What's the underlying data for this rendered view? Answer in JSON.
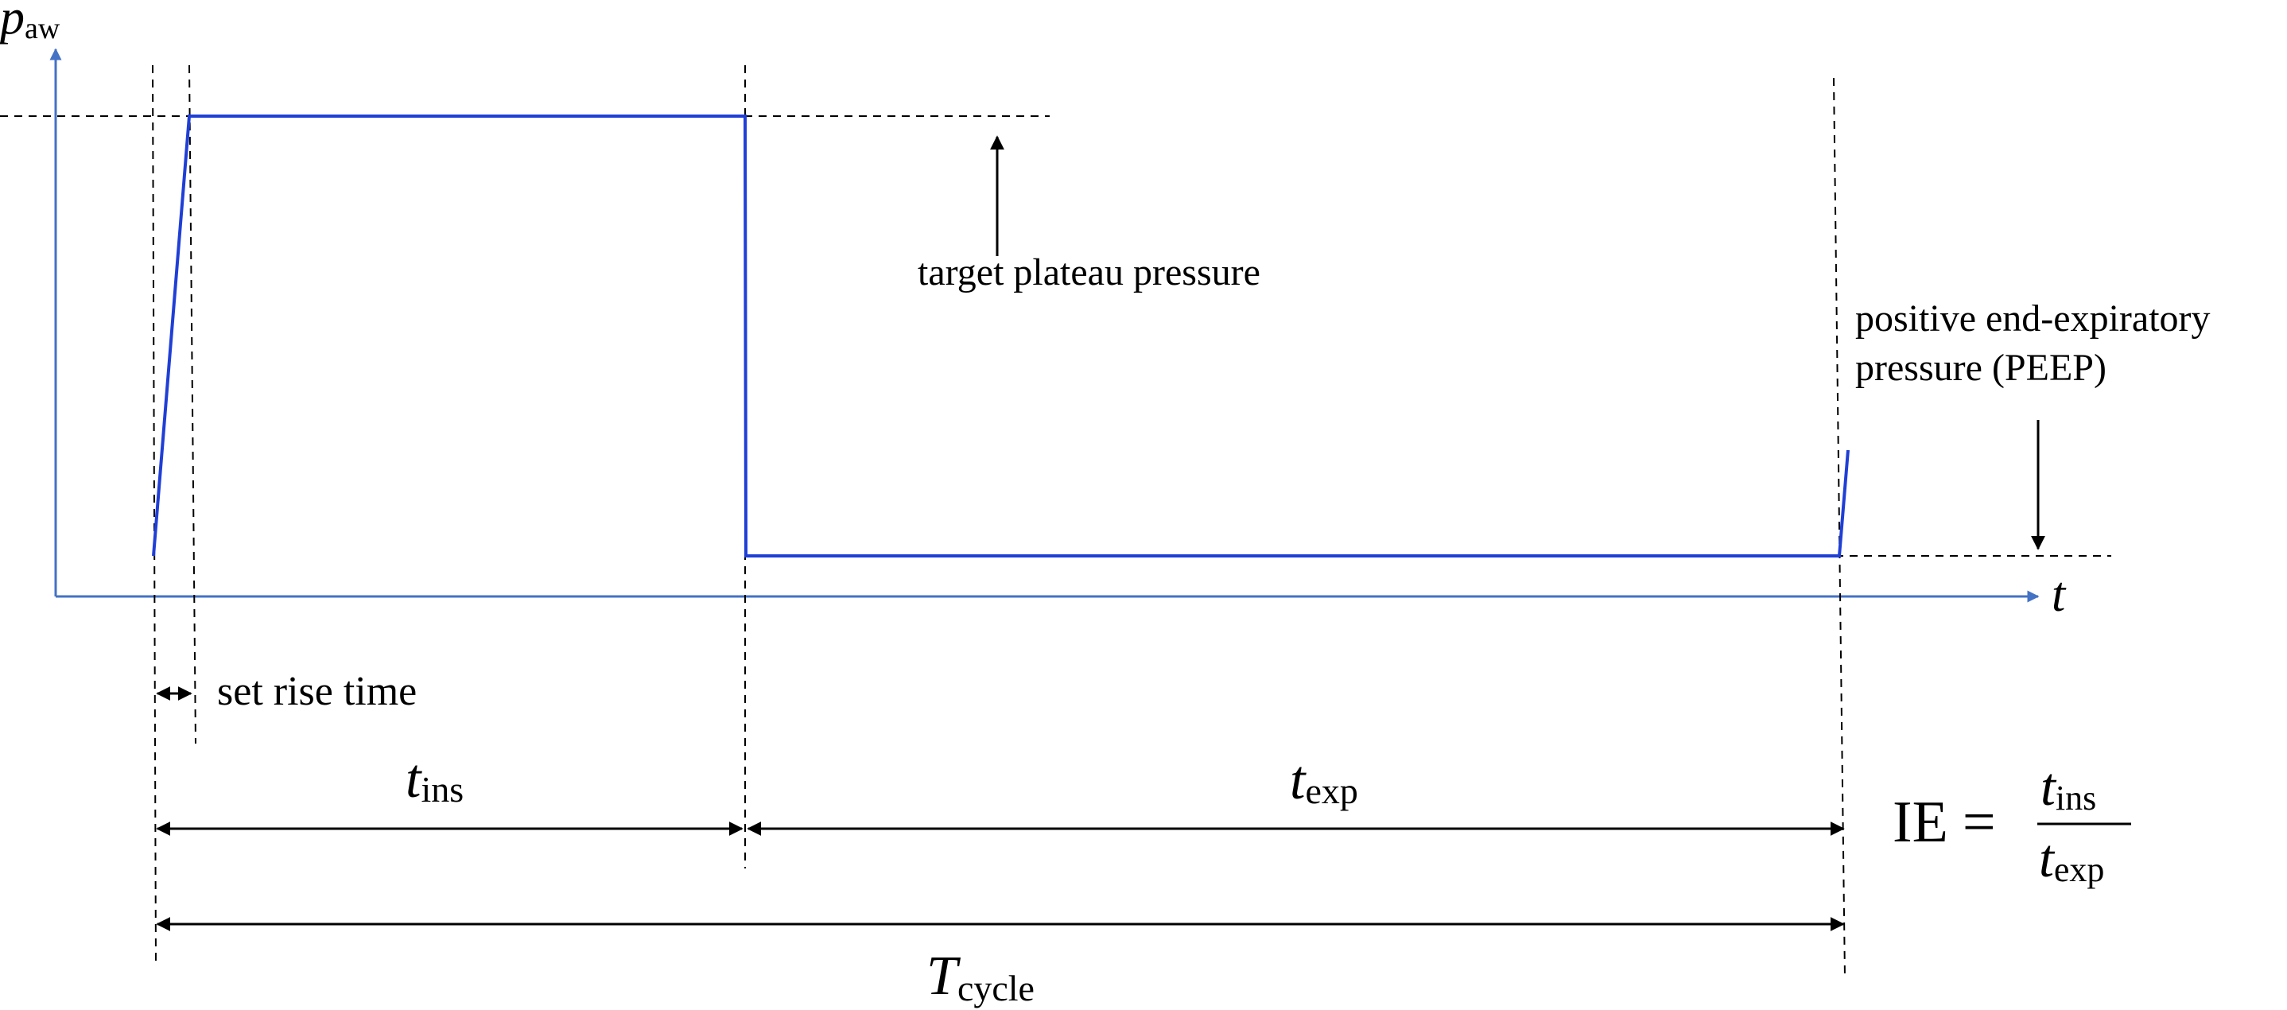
{
  "axes": {
    "y_symbol": "p",
    "y_subscript": "aw",
    "x_symbol": "t"
  },
  "labels": {
    "plateau": "target plateau pressure",
    "peep_line1": "positive end-expiratory",
    "peep_line2": "pressure (PEEP)",
    "rise_time": "set rise time"
  },
  "intervals": {
    "t_ins": {
      "symbol": "t",
      "subscript": "ins"
    },
    "t_exp": {
      "symbol": "t",
      "subscript": "exp"
    },
    "t_cycle": {
      "symbol": "T",
      "subscript": "cycle"
    }
  },
  "formula": {
    "lhs": "IE",
    "equals": "=",
    "numerator_symbol": "t",
    "numerator_subscript": "ins",
    "denominator_symbol": "t",
    "denominator_subscript": "exp"
  },
  "colors": {
    "axis": "#4472c4",
    "waveform": "#1f3fd6",
    "guides": "#000000"
  }
}
